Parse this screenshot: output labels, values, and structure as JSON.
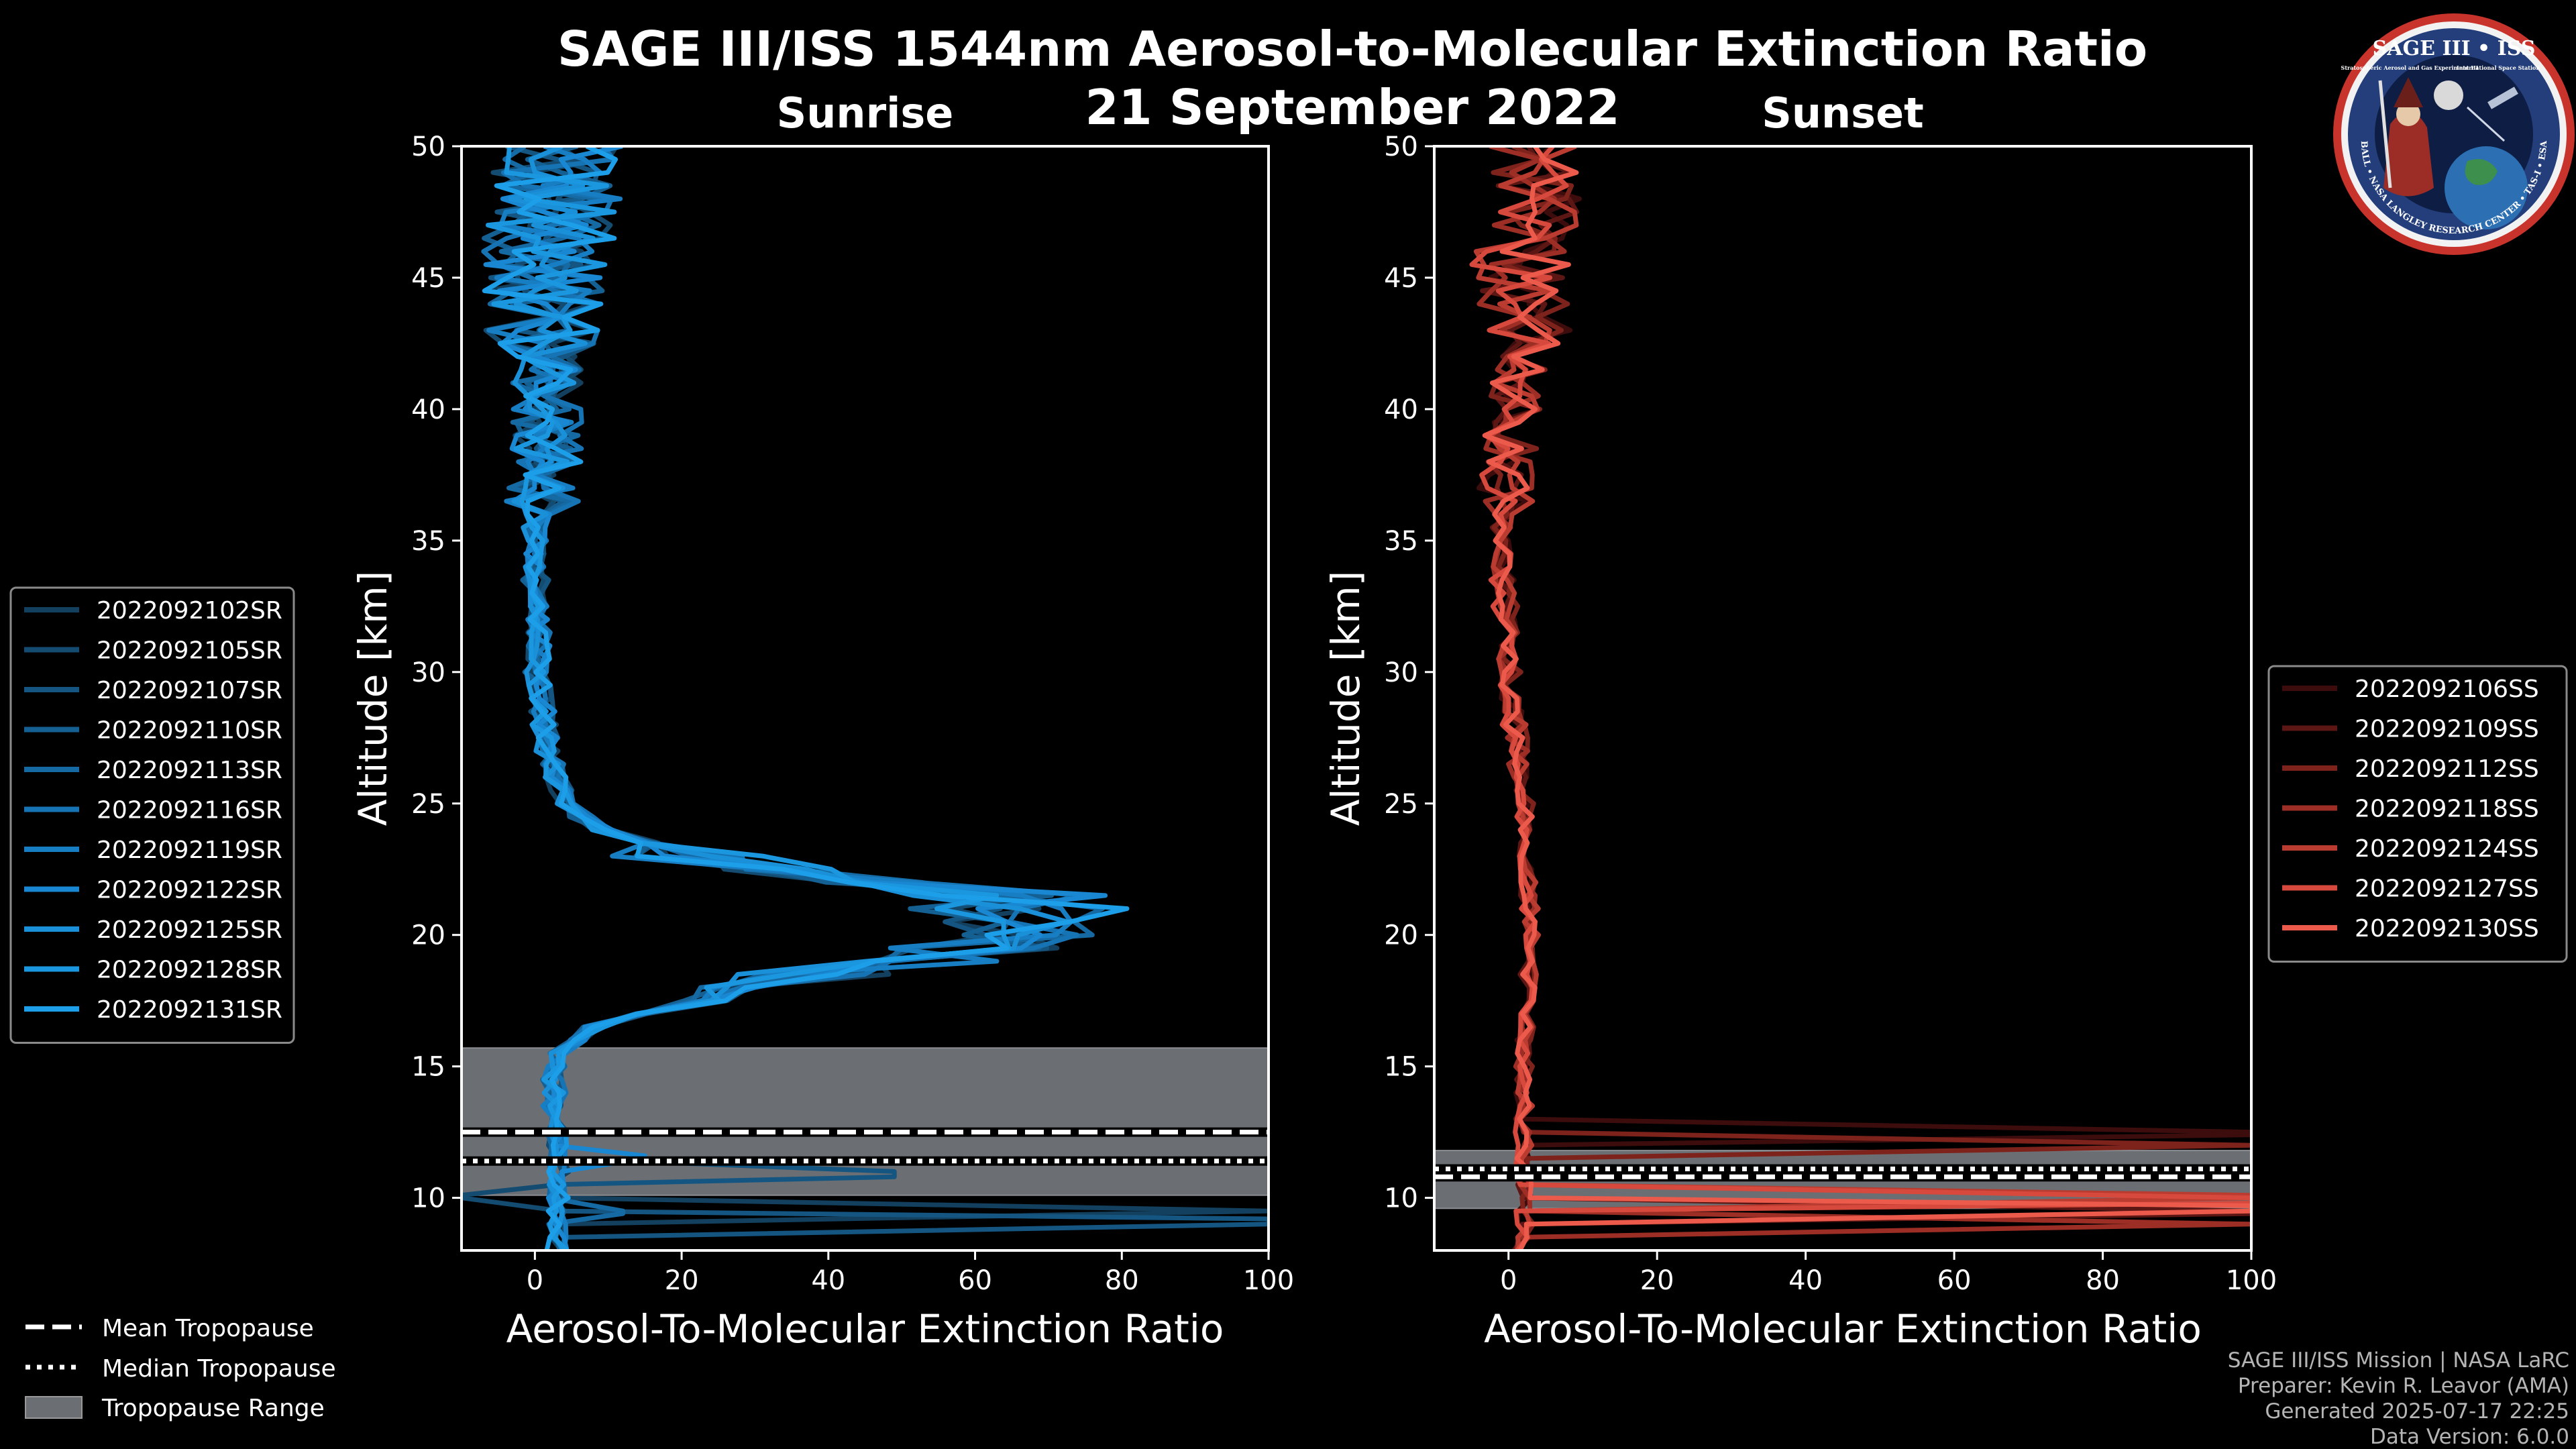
{
  "title": "SAGE III/ISS 1544nm Aerosol-to-Molecular Extinction Ratio",
  "date": "21 September 2022",
  "logo": {
    "text_top": "SAGE III • ISS",
    "text_ring": "BALL • NASA LANGLEY RESEARCH CENTER • TAS-I • ESA",
    "text_sub_left": "Stratospheric Aerosol and Gas Experiment III",
    "text_sub_right": "International Space Station"
  },
  "footer": {
    "line1": "SAGE III/ISS Mission | NASA LaRC",
    "line2": "Preparer: Kevin R. Leavor (AMA)",
    "line3": "Generated 2025-07-17 22:25",
    "line4": "Data Version: 6.0.0"
  },
  "colors": {
    "sunrise": "#1a9be0",
    "sunset": "#e8564a",
    "tropopause_range": "#6b6e72"
  },
  "bottom_legend": {
    "mean": "Mean Tropopause",
    "median": "Median Tropopause",
    "range": "Tropopause Range"
  },
  "chart_data": [
    {
      "type": "line",
      "title": "Sunrise",
      "xlabel": "Aerosol-To-Molecular Extinction Ratio",
      "ylabel": "Altitude [km]",
      "xlim": [
        -10,
        100
      ],
      "ylim": [
        8,
        50
      ],
      "xticks": [
        0,
        20,
        40,
        60,
        80,
        100
      ],
      "yticks": [
        10,
        15,
        20,
        25,
        30,
        35,
        40,
        45,
        50
      ],
      "tropopause": {
        "mean": 12.5,
        "median": 11.4,
        "range": [
          10.1,
          15.7
        ]
      },
      "series": [
        {
          "name": "2022092102SR",
          "color": "#12405e",
          "spikes": [
            [
              9.5,
              100
            ]
          ],
          "bias": 0.2
        },
        {
          "name": "2022092105SR",
          "color": "#134c70",
          "spikes": [
            [
              10.1,
              -10
            ]
          ],
          "bias": -0.2
        },
        {
          "name": "2022092107SR",
          "color": "#145681",
          "spikes": [
            [
              10.8,
              49
            ],
            [
              9.2,
              100
            ]
          ],
          "bias": 0.3
        },
        {
          "name": "2022092110SR",
          "color": "#156092",
          "spikes": [],
          "bias": -0.3
        },
        {
          "name": "2022092113SR",
          "color": "#166aa3",
          "spikes": [
            [
              9.4,
              12
            ]
          ],
          "bias": 0.1
        },
        {
          "name": "2022092116SR",
          "color": "#1774b4",
          "spikes": [],
          "bias": 0.4
        },
        {
          "name": "2022092119SR",
          "color": "#187ec4",
          "spikes": [],
          "bias": -0.1
        },
        {
          "name": "2022092122SR",
          "color": "#1987d1",
          "spikes": [
            [
              11.6,
              15
            ]
          ],
          "bias": 0.2
        },
        {
          "name": "2022092125SR",
          "color": "#1a90d9",
          "spikes": [],
          "bias": -0.4
        },
        {
          "name": "2022092128SR",
          "color": "#1b97e0",
          "spikes": [],
          "bias": 0.0
        },
        {
          "name": "2022092131SR",
          "color": "#1c9fe8",
          "spikes": [],
          "bias": 0.1
        }
      ]
    },
    {
      "type": "line",
      "title": "Sunset",
      "xlabel": "Aerosol-To-Molecular Extinction Ratio",
      "ylabel": "Altitude [km]",
      "xlim": [
        -10,
        100
      ],
      "ylim": [
        8,
        50
      ],
      "xticks": [
        0,
        20,
        40,
        60,
        80,
        100
      ],
      "yticks": [
        10,
        15,
        20,
        25,
        30,
        35,
        40,
        45,
        50
      ],
      "tropopause": {
        "mean": 10.8,
        "median": 11.1,
        "range": [
          9.6,
          11.8
        ]
      },
      "series": [
        {
          "name": "2022092106SS",
          "color": "#3d0c0c",
          "spikes": [
            [
              12.4,
              100
            ]
          ],
          "bias": 0.0
        },
        {
          "name": "2022092109SS",
          "color": "#5c1613",
          "spikes": [
            [
              9.4,
              100
            ]
          ],
          "bias": -0.3
        },
        {
          "name": "2022092112SS",
          "color": "#7e221c",
          "spikes": [
            [
              12.0,
              100
            ]
          ],
          "bias": 0.3
        },
        {
          "name": "2022092118SS",
          "color": "#9c2e25",
          "spikes": [
            [
              9.0,
              100
            ]
          ],
          "bias": -0.1
        },
        {
          "name": "2022092124SS",
          "color": "#ba3b30",
          "spikes": [
            [
              10.1,
              100
            ]
          ],
          "bias": 0.2
        },
        {
          "name": "2022092127SS",
          "color": "#d6493c",
          "spikes": [
            [
              9.8,
              100
            ]
          ],
          "bias": -0.2
        },
        {
          "name": "2022092130SS",
          "color": "#ec5a4c",
          "spikes": [
            [
              9.7,
              100
            ]
          ],
          "bias": 0.1
        }
      ]
    }
  ]
}
